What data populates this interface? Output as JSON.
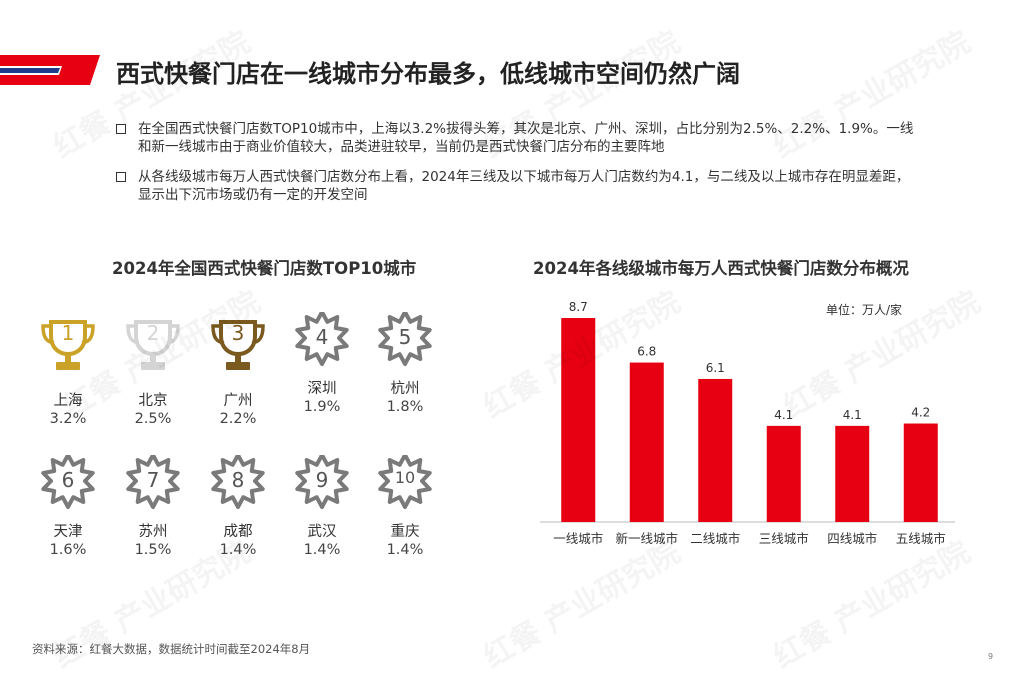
{
  "header": {
    "title": "西式快餐门店在一线城市分布最多，低线城市空间仍然广阔",
    "accent_color": "#e60012"
  },
  "bullets": [
    "在全国西式快餐门店数TOP10城市中，上海以3.2%拔得头筹，其次是北京、广州、深圳，占比分别为2.5%、2.2%、1.9%。一线和新一线城市由于商业价值较大，品类进驻较早，当前仍是西式快餐门店分布的主要阵地",
    "从各线级城市每万人西式快餐门店数分布上看，2024年三线及以下城市每万人门店数约为4.1，与二线及以上城市存在明显差距，显示出下沉市场或仍有一定的开发空间"
  ],
  "left_section": {
    "title": "2024年全国西式快餐门店数TOP10城市",
    "cities": [
      {
        "rank": "1",
        "name": "上海",
        "share": "3.2%",
        "icon": "gold-trophy"
      },
      {
        "rank": "2",
        "name": "北京",
        "share": "2.5%",
        "icon": "silver-trophy"
      },
      {
        "rank": "3",
        "name": "广州",
        "share": "2.2%",
        "icon": "bronze-trophy"
      },
      {
        "rank": "4",
        "name": "深圳",
        "share": "1.9%",
        "icon": "star-badge"
      },
      {
        "rank": "5",
        "name": "杭州",
        "share": "1.8%",
        "icon": "star-badge"
      },
      {
        "rank": "6",
        "name": "天津",
        "share": "1.6%",
        "icon": "star-badge"
      },
      {
        "rank": "7",
        "name": "苏州",
        "share": "1.5%",
        "icon": "star-badge"
      },
      {
        "rank": "8",
        "name": "成都",
        "share": "1.4%",
        "icon": "star-badge"
      },
      {
        "rank": "9",
        "name": "武汉",
        "share": "1.4%",
        "icon": "star-badge"
      },
      {
        "rank": "10",
        "name": "重庆",
        "share": "1.4%",
        "icon": "star-badge"
      }
    ],
    "colors": {
      "gold": "#c9a227",
      "silver": "#d4d4d4",
      "bronze": "#7a5a1e",
      "badge": "#7a7a7a"
    }
  },
  "right_section": {
    "title": "2024年各线级城市每万人西式快餐门店数分布概况",
    "unit": "单位：万人/家"
  },
  "chart_data": {
    "type": "bar",
    "categories": [
      "一线城市",
      "新一线城市",
      "二线城市",
      "三线城市",
      "四线城市",
      "五线城市"
    ],
    "values": [
      8.7,
      6.8,
      6.1,
      4.1,
      4.1,
      4.2
    ],
    "value_labels": [
      "8.7",
      "6.8",
      "6.1",
      "4.1",
      "4.1",
      "4.2"
    ],
    "ylim": [
      0,
      8.7
    ],
    "bar_color": "#e60012",
    "grid": false
  },
  "footer": {
    "source": "资料来源：红餐大数据，数据统计时间截至2024年8月",
    "page_number": "9"
  },
  "watermark": "红餐 产业研究院"
}
